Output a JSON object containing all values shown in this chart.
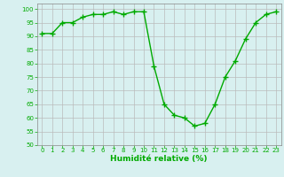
{
  "x": [
    0,
    1,
    2,
    3,
    4,
    5,
    6,
    7,
    8,
    9,
    10,
    11,
    12,
    13,
    14,
    15,
    16,
    17,
    18,
    19,
    20,
    21,
    22,
    23
  ],
  "y": [
    91,
    91,
    95,
    95,
    97,
    98,
    98,
    99,
    98,
    99,
    99,
    79,
    65,
    61,
    60,
    57,
    58,
    65,
    75,
    81,
    89,
    95,
    98,
    99
  ],
  "line_color": "#00aa00",
  "marker": "+",
  "marker_size": 4,
  "bg_color": "#d8f0f0",
  "grid_color": "#bbbbbb",
  "xlabel": "Humidité relative (%)",
  "ylim": [
    50,
    102
  ],
  "xlim": [
    -0.5,
    23.5
  ],
  "yticks": [
    50,
    55,
    60,
    65,
    70,
    75,
    80,
    85,
    90,
    95,
    100
  ],
  "xticks": [
    0,
    1,
    2,
    3,
    4,
    5,
    6,
    7,
    8,
    9,
    10,
    11,
    12,
    13,
    14,
    15,
    16,
    17,
    18,
    19,
    20,
    21,
    22,
    23
  ],
  "xlabel_color": "#00aa00",
  "tick_color": "#00aa00",
  "tick_fontsize": 5,
  "xlabel_fontsize": 6.5,
  "xlabel_fontweight": "bold",
  "linewidth": 1.0,
  "marker_linewidth": 1.0
}
